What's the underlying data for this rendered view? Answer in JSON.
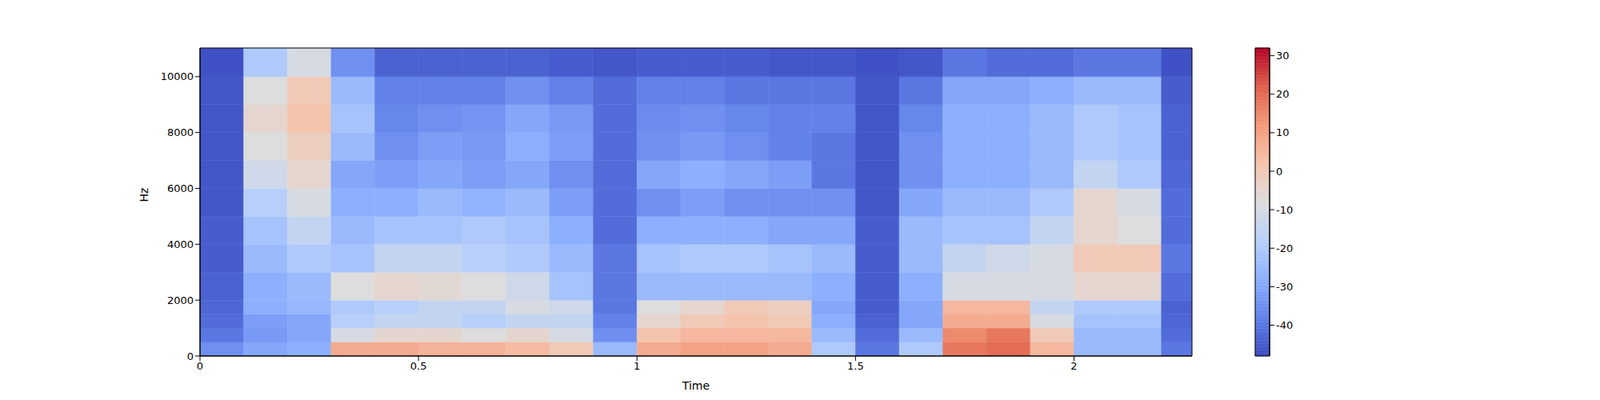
{
  "chart_data": {
    "type": "heatmap",
    "x_label": "Time",
    "y_label": "Hz",
    "xlim": [
      0,
      2.27
    ],
    "ylim": [
      0,
      11025
    ],
    "xticks": [
      0,
      0.5,
      1,
      1.5,
      2
    ],
    "yticks": [
      0,
      2000,
      4000,
      6000,
      8000,
      10000
    ],
    "x_edges": [
      0,
      0.1,
      0.2,
      0.3,
      0.4,
      0.5,
      0.6,
      0.7,
      0.8,
      0.9,
      1.0,
      1.1,
      1.2,
      1.3,
      1.4,
      1.5,
      1.6,
      1.7,
      1.8,
      1.9,
      2.0,
      2.1,
      2.2,
      2.27
    ],
    "y_edges": [
      0,
      500,
      1000,
      1500,
      2000,
      3000,
      4000,
      5000,
      6000,
      7000,
      8000,
      9000,
      10000,
      11025
    ],
    "cells": [
      [
        -35,
        -40,
        -42,
        -43,
        -44,
        -45,
        -45,
        -46,
        -46,
        -46,
        -46,
        -46,
        -47
      ],
      [
        -30,
        -33,
        -32,
        -28,
        -28,
        -25,
        -22,
        -18,
        -12,
        -8,
        -5,
        -8,
        -20
      ],
      [
        -28,
        -30,
        -30,
        -26,
        -25,
        -20,
        -15,
        -10,
        -5,
        -2,
        2,
        0,
        -10
      ],
      [
        8,
        -10,
        -18,
        -20,
        -8,
        -22,
        -25,
        -28,
        -30,
        -25,
        -22,
        -25,
        -35
      ],
      [
        8,
        -5,
        -15,
        -18,
        -5,
        -15,
        -22,
        -28,
        -32,
        -35,
        -37,
        -38,
        -44
      ],
      [
        6,
        -5,
        -15,
        -15,
        -6,
        -15,
        -22,
        -25,
        -30,
        -32,
        -35,
        -38,
        -44
      ],
      [
        6,
        -8,
        -18,
        -15,
        -8,
        -18,
        -20,
        -27,
        -32,
        -33,
        -34,
        -38,
        -44
      ],
      [
        4,
        -5,
        -15,
        -10,
        -12,
        -20,
        -22,
        -25,
        -30,
        -28,
        -30,
        -35,
        -44
      ],
      [
        0,
        -10,
        -15,
        -12,
        -22,
        -25,
        -28,
        -32,
        -35,
        -32,
        -33,
        -38,
        -45
      ],
      [
        -25,
        -35,
        -38,
        -40,
        -40,
        -40,
        -42,
        -42,
        -42,
        -42,
        -42,
        -42,
        -46
      ],
      [
        8,
        2,
        -5,
        -8,
        -25,
        -22,
        -28,
        -35,
        -30,
        -35,
        -36,
        -38,
        -45
      ],
      [
        10,
        5,
        0,
        -5,
        -25,
        -20,
        -28,
        -32,
        -28,
        -33,
        -35,
        -38,
        -45
      ],
      [
        10,
        5,
        2,
        0,
        -25,
        -20,
        -28,
        -35,
        -30,
        -35,
        -37,
        -40,
        -45
      ],
      [
        8,
        5,
        0,
        -2,
        -25,
        -22,
        -30,
        -35,
        -32,
        -38,
        -38,
        -40,
        -46
      ],
      [
        -20,
        -25,
        -28,
        -30,
        -28,
        -25,
        -30,
        -35,
        -40,
        -40,
        -38,
        -40,
        -46
      ],
      [
        -40,
        -42,
        -44,
        -45,
        -45,
        -45,
        -45,
        -46,
        -46,
        -46,
        -46,
        -46,
        -47
      ],
      [
        -20,
        -25,
        -30,
        -30,
        -28,
        -25,
        -25,
        -30,
        -35,
        -35,
        -37,
        -40,
        -46
      ],
      [
        18,
        15,
        8,
        5,
        -10,
        -15,
        -22,
        -25,
        -28,
        -28,
        -28,
        -30,
        -40
      ],
      [
        20,
        18,
        8,
        5,
        -10,
        -12,
        -22,
        -25,
        -28,
        -28,
        -28,
        -30,
        -42
      ],
      [
        5,
        0,
        -10,
        -15,
        -10,
        -10,
        -15,
        -20,
        -25,
        -25,
        -25,
        -28,
        -42
      ],
      [
        -25,
        -25,
        -22,
        -20,
        -5,
        0,
        -5,
        -5,
        -15,
        -20,
        -20,
        -25,
        -40
      ],
      [
        -25,
        -25,
        -22,
        -20,
        -5,
        0,
        -8,
        -10,
        -20,
        -22,
        -22,
        -25,
        -40
      ],
      [
        -40,
        -42,
        -43,
        -44,
        -42,
        -40,
        -42,
        -42,
        -43,
        -44,
        -44,
        -45,
        -47
      ]
    ],
    "colorbar": {
      "range": [
        -48,
        32
      ],
      "ticks": [
        -40,
        -30,
        -20,
        -10,
        0,
        10,
        20,
        30
      ]
    }
  }
}
